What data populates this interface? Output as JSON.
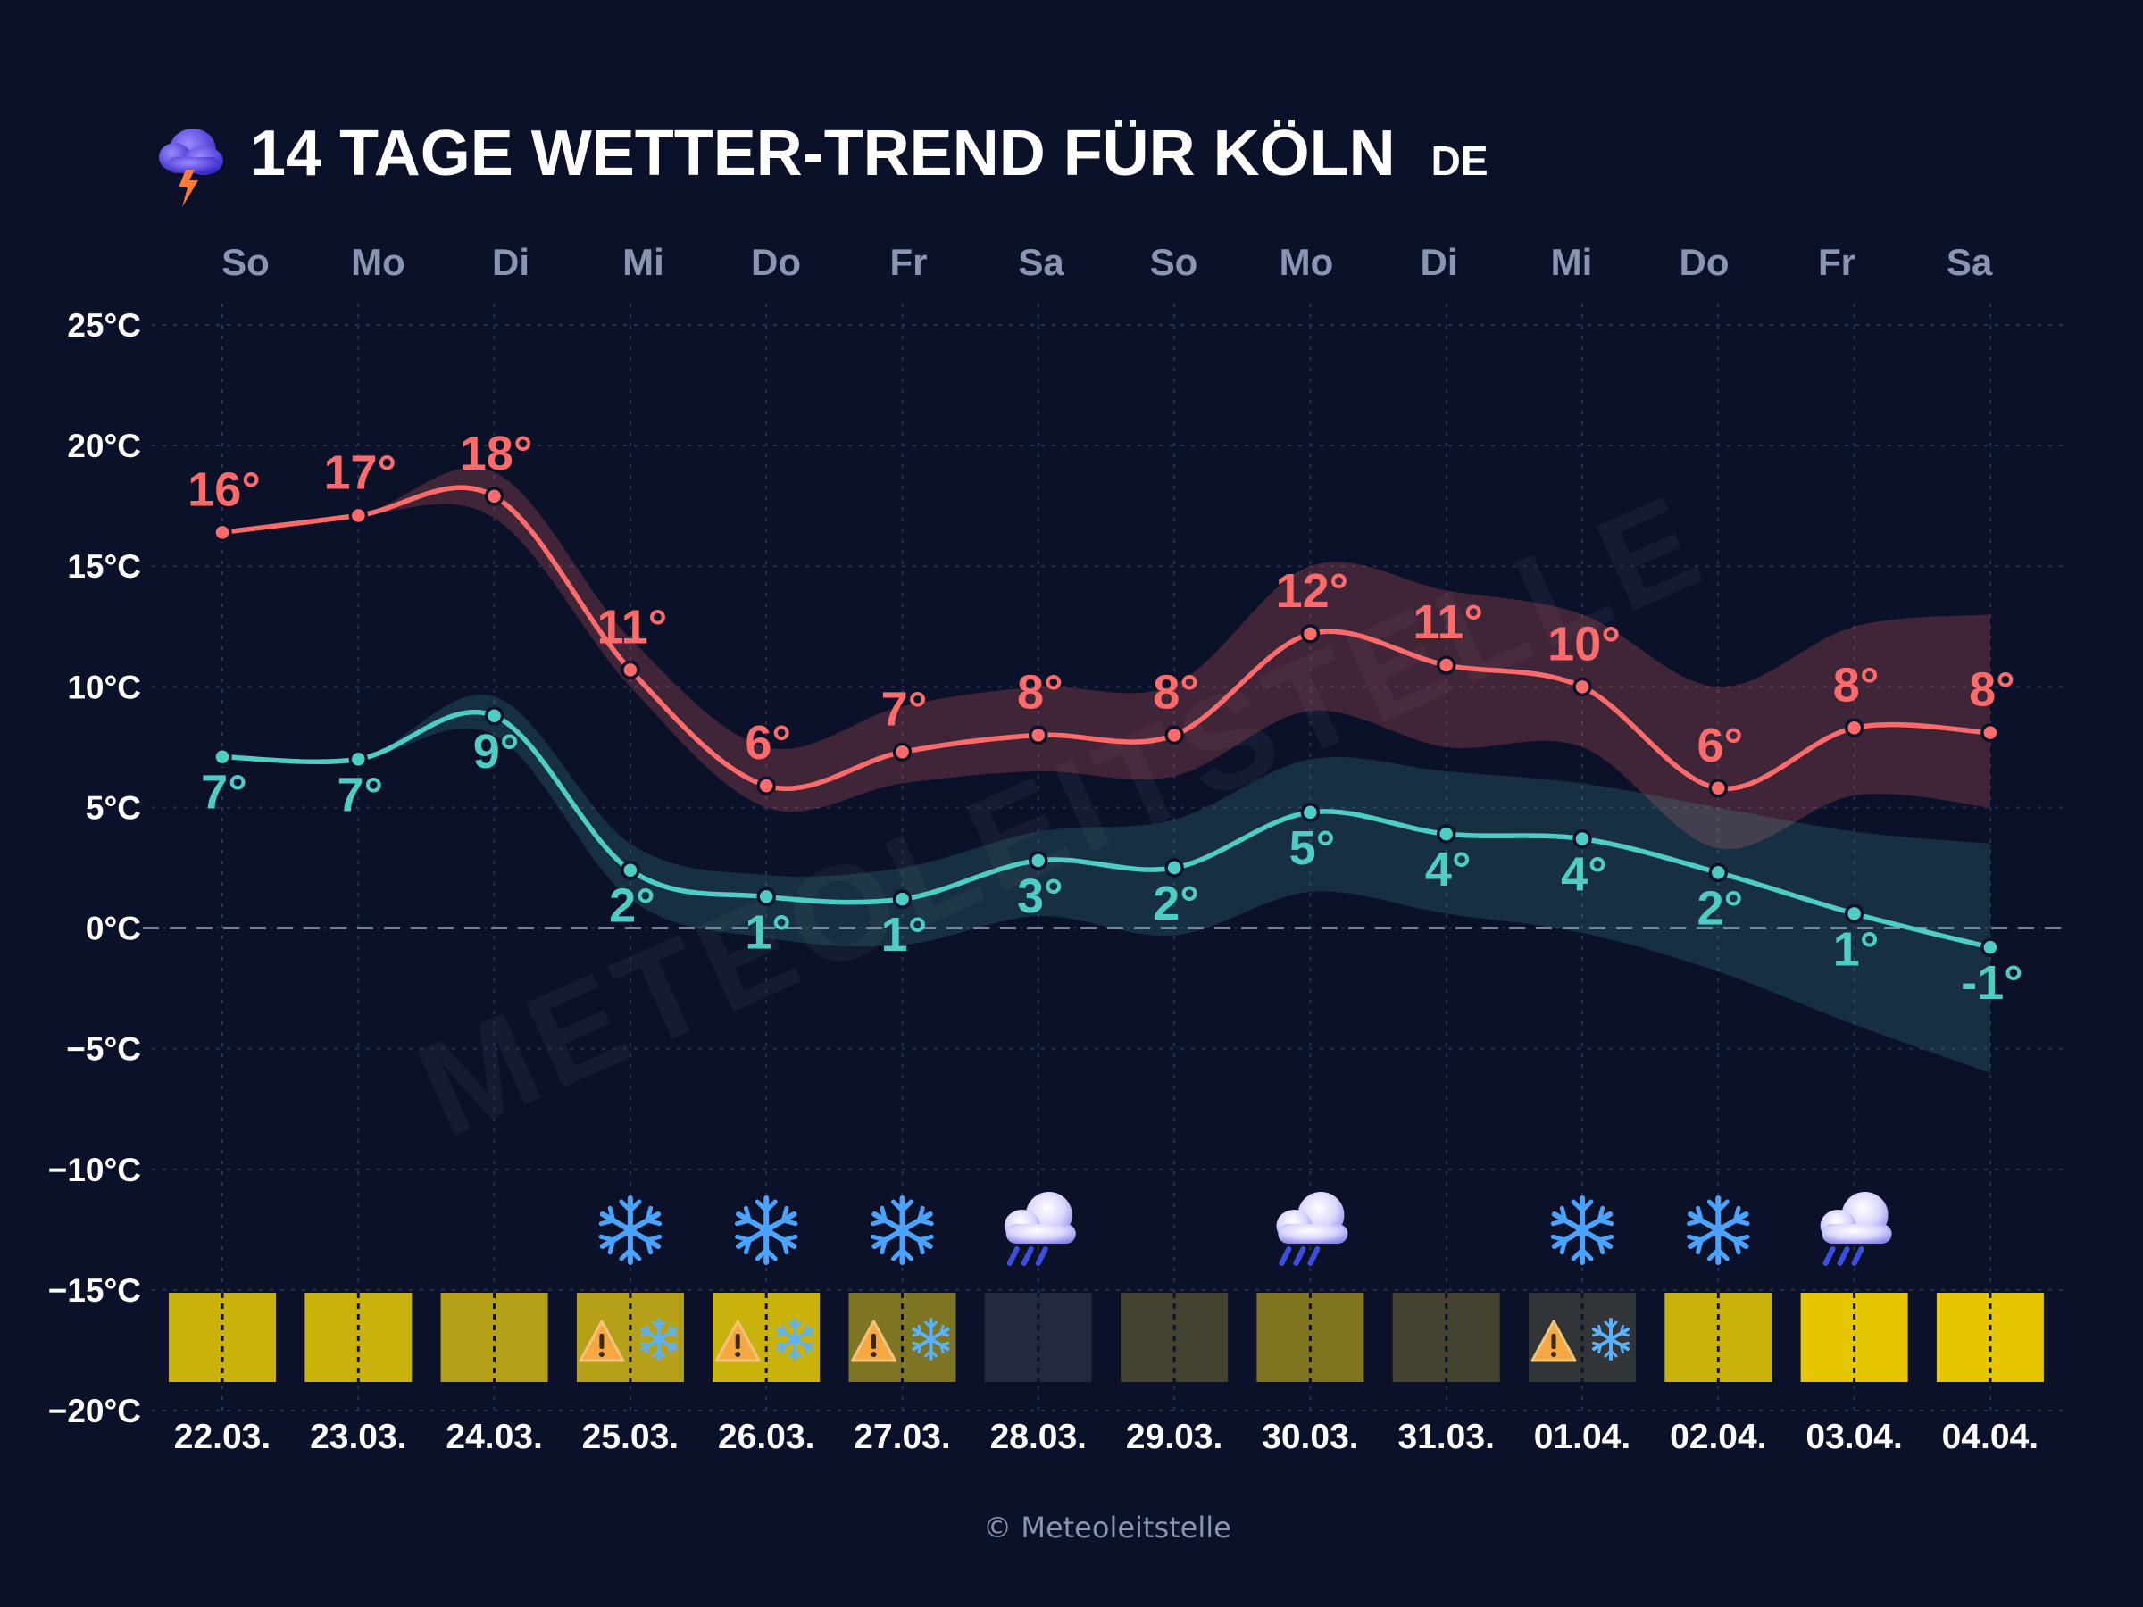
{
  "title": "14 TAGE WETTER-TREND FÜR KÖLN",
  "country_code": "DE",
  "watermark": "METEOLEITSTELLE",
  "copyright": "© Meteoleitstelle",
  "colors": {
    "background": "#0b1129",
    "max_line": "#ff6b6b",
    "min_line": "#4ecdc4",
    "weekday": "#8a94b3",
    "grid": "#27304f"
  },
  "chart_data": {
    "type": "line",
    "title": "14 TAGE WETTER-TREND FÜR KÖLN",
    "ylabel": "°C",
    "ylim": [
      -20,
      25
    ],
    "yticks": [
      "25°C",
      "20°C",
      "15°C",
      "10°C",
      "5°C",
      "0°C",
      "−5°C",
      "−10°C",
      "−15°C",
      "−20°C"
    ],
    "ytick_values": [
      25,
      20,
      15,
      10,
      5,
      0,
      -5,
      -10,
      -15,
      -20
    ],
    "weekdays": [
      "So",
      "Mo",
      "Di",
      "Mi",
      "Do",
      "Fr",
      "Sa",
      "So",
      "Mo",
      "Di",
      "Mi",
      "Do",
      "Fr",
      "Sa"
    ],
    "dates": [
      "22.03.",
      "23.03.",
      "24.03.",
      "25.03.",
      "26.03.",
      "27.03.",
      "28.03.",
      "29.03.",
      "30.03.",
      "31.03.",
      "01.04.",
      "02.04.",
      "03.04.",
      "04.04."
    ],
    "series": [
      {
        "name": "max",
        "values": [
          16.4,
          17.1,
          17.9,
          10.7,
          5.9,
          7.3,
          8.0,
          8.0,
          12.2,
          10.9,
          10.0,
          5.8,
          8.3,
          8.1
        ],
        "labels": [
          "16°",
          "17°",
          "18°",
          "11°",
          "6°",
          "7°",
          "8°",
          "8°",
          "12°",
          "11°",
          "10°",
          "6°",
          "8°",
          "8°"
        ],
        "band_upper": [
          16.4,
          17.1,
          18.9,
          12.0,
          7.5,
          9.2,
          10.0,
          10.1,
          15.0,
          14.0,
          13.0,
          10.0,
          12.5,
          13.0
        ],
        "band_lower": [
          16.4,
          17.1,
          17.0,
          10.0,
          5.0,
          6.0,
          6.5,
          6.3,
          9.0,
          7.5,
          7.5,
          3.3,
          5.5,
          5.0
        ]
      },
      {
        "name": "min",
        "values": [
          7.1,
          7.0,
          8.8,
          2.4,
          1.3,
          1.2,
          2.8,
          2.5,
          4.8,
          3.9,
          3.7,
          2.3,
          0.6,
          -0.8
        ],
        "labels": [
          "7°",
          "7°",
          "9°",
          "2°",
          "1°",
          "1°",
          "3°",
          "2°",
          "5°",
          "4°",
          "4°",
          "2°",
          "1°",
          "-1°"
        ],
        "band_upper": [
          7.1,
          7.0,
          9.6,
          3.5,
          2.2,
          2.5,
          4.0,
          4.5,
          7.0,
          6.5,
          6.0,
          5.0,
          4.0,
          3.5
        ],
        "band_lower": [
          7.1,
          7.0,
          8.0,
          1.2,
          -0.4,
          -0.7,
          0.5,
          -0.3,
          1.5,
          0.6,
          -0.2,
          -1.8,
          -4.0,
          -6.0
        ]
      }
    ],
    "weather_icons": [
      "",
      "",
      "",
      "snow",
      "snow",
      "snow",
      "rain",
      "",
      "rain",
      "",
      "snow",
      "snow",
      "rain",
      ""
    ],
    "warning_days": [
      false,
      false,
      false,
      true,
      true,
      true,
      false,
      false,
      false,
      false,
      true,
      false,
      false,
      false
    ],
    "day_box_colors": [
      "#cab20d",
      "#cab20d",
      "#b6a018",
      "#b6a018",
      "#cab20d",
      "#7d7424",
      "#23293f",
      "#44432f",
      "#807521",
      "#44432f",
      "#323537",
      "#cab20d",
      "#e6c600",
      "#e6c600"
    ]
  }
}
